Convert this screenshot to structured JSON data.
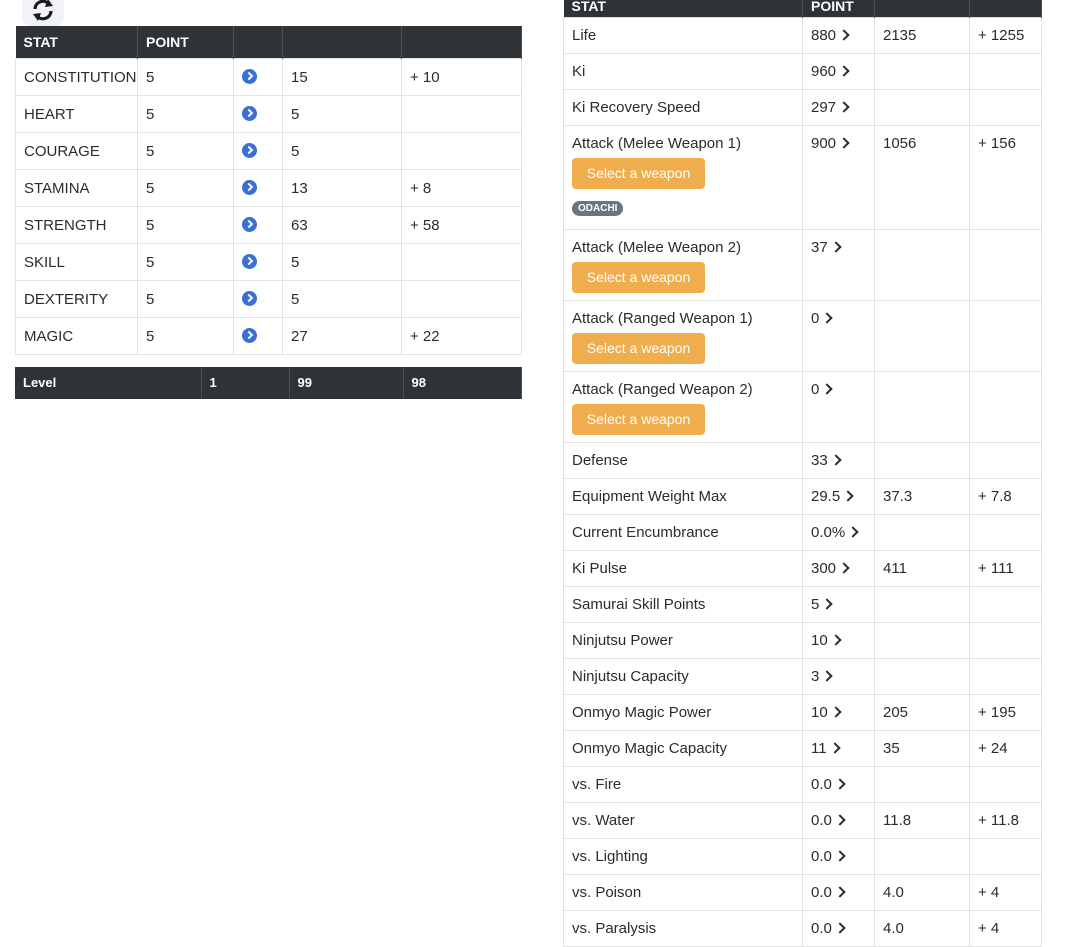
{
  "stats_table": {
    "headers": [
      "STAT",
      "POINT",
      "",
      "",
      ""
    ],
    "rows": [
      {
        "stat": "CONSTITUTION",
        "point": "5",
        "value": "15",
        "bonus": "+ 10"
      },
      {
        "stat": "HEART",
        "point": "5",
        "value": "5",
        "bonus": ""
      },
      {
        "stat": "COURAGE",
        "point": "5",
        "value": "5",
        "bonus": ""
      },
      {
        "stat": "STAMINA",
        "point": "5",
        "value": "13",
        "bonus": "+ 8"
      },
      {
        "stat": "STRENGTH",
        "point": "5",
        "value": "63",
        "bonus": "+ 58"
      },
      {
        "stat": "SKILL",
        "point": "5",
        "value": "5",
        "bonus": ""
      },
      {
        "stat": "DEXTERITY",
        "point": "5",
        "value": "5",
        "bonus": ""
      },
      {
        "stat": "MAGIC",
        "point": "5",
        "value": "27",
        "bonus": "+ 22"
      }
    ]
  },
  "level_row": {
    "label": "Level",
    "base": "1",
    "current": "99",
    "diff": "98"
  },
  "derived_table": {
    "headers": [
      "STAT",
      "POINT",
      "",
      ""
    ],
    "select_weapon_label": "Select a weapon",
    "rows": [
      {
        "stat": "Life",
        "point": "880",
        "value": "2135",
        "bonus": "+ 1255"
      },
      {
        "stat": "Ki",
        "point": "960",
        "value": "",
        "bonus": ""
      },
      {
        "stat": "Ki Recovery Speed",
        "point": "297",
        "value": "",
        "bonus": ""
      },
      {
        "stat": "Attack (Melee Weapon 1)",
        "point": "900",
        "value": "1056",
        "bonus": "+ 156",
        "weapon_button": true,
        "badge": "ODACHI"
      },
      {
        "stat": "Attack (Melee Weapon 2)",
        "point": "37",
        "value": "",
        "bonus": "",
        "weapon_button": true
      },
      {
        "stat": "Attack (Ranged Weapon 1)",
        "point": "0",
        "value": "",
        "bonus": "",
        "weapon_button": true
      },
      {
        "stat": "Attack (Ranged Weapon 2)",
        "point": "0",
        "value": "",
        "bonus": "",
        "weapon_button": true
      },
      {
        "stat": "Defense",
        "point": "33",
        "value": "",
        "bonus": ""
      },
      {
        "stat": "Equipment Weight Max",
        "point": "29.5",
        "value": "37.3",
        "bonus": "+ 7.8"
      },
      {
        "stat": "Current Encumbrance",
        "point": "0.0%",
        "value": "",
        "bonus": ""
      },
      {
        "stat": "Ki Pulse",
        "point": "300",
        "value": "411",
        "bonus": "+ 111"
      },
      {
        "stat": "Samurai Skill Points",
        "point": "5",
        "value": "",
        "bonus": ""
      },
      {
        "stat": "Ninjutsu Power",
        "point": "10",
        "value": "",
        "bonus": ""
      },
      {
        "stat": "Ninjutsu Capacity",
        "point": "3",
        "value": "",
        "bonus": ""
      },
      {
        "stat": "Onmyo Magic Power",
        "point": "10",
        "value": "205",
        "bonus": "+ 195"
      },
      {
        "stat": "Onmyo Magic Capacity",
        "point": "11",
        "value": "35",
        "bonus": "+ 24"
      },
      {
        "stat": "vs. Fire",
        "point": "0.0",
        "value": "",
        "bonus": ""
      },
      {
        "stat": "vs. Water",
        "point": "0.0",
        "value": "11.8",
        "bonus": "+ 11.8"
      },
      {
        "stat": "vs. Lighting",
        "point": "0.0",
        "value": "",
        "bonus": ""
      },
      {
        "stat": "vs. Poison",
        "point": "0.0",
        "value": "4.0",
        "bonus": "+ 4"
      },
      {
        "stat": "vs. Paralysis",
        "point": "0.0",
        "value": "4.0",
        "bonus": "+ 4"
      }
    ]
  },
  "icons": {
    "reset": "reset-icon",
    "increase": "arrow-right-circle-icon",
    "derived_increase": "chevron-right-icon"
  },
  "colors": {
    "header_bg": "#2f3337",
    "arrow_blue": "#3b6fd8",
    "weapon_button": "#f0ad4e",
    "badge": "#6c757d"
  }
}
